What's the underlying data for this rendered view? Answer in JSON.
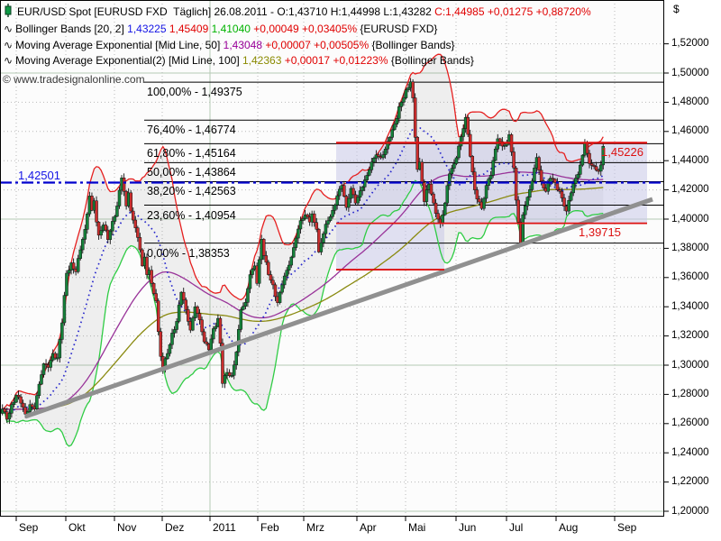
{
  "header": {
    "rows": [
      {
        "icon": "candle-icon",
        "segments": [
          {
            "t": "EUR/USD Spot [EURUSD FXD  Täglich] 26.08.2011 - O:1,43710 H:1,44998 L:1,43282 ",
            "c": "#000000"
          },
          {
            "t": "C:1,44985 +0,01275 +0,88720%",
            "c": "#e00000"
          }
        ]
      },
      {
        "icon": "wave-icon",
        "segments": [
          {
            "t": "Bollinger Bands [20, 2] ",
            "c": "#000000"
          },
          {
            "t": "1,43225 ",
            "c": "#1414e6"
          },
          {
            "t": "1,45409 ",
            "c": "#e00000"
          },
          {
            "t": "1,41040 ",
            "c": "#00b300"
          },
          {
            "t": "+0,00049 +0,03405% ",
            "c": "#e00000"
          },
          {
            "t": "{EURUSD FXD}",
            "c": "#000000"
          }
        ]
      },
      {
        "icon": "wave-icon",
        "segments": [
          {
            "t": "Moving Average Exponential [Mid Line, 50] ",
            "c": "#000000"
          },
          {
            "t": "1,43048 ",
            "c": "#990099"
          },
          {
            "t": "+0,00007 +0,00505% ",
            "c": "#e00000"
          },
          {
            "t": "{Bollinger Bands}",
            "c": "#000000"
          }
        ]
      },
      {
        "icon": "wave-icon",
        "segments": [
          {
            "t": "Moving Average Exponential(2) [Mid Line, 100] ",
            "c": "#000000"
          },
          {
            "t": "1,42363 ",
            "c": "#8a8a00"
          },
          {
            "t": "+0,00017 +0,01223% ",
            "c": "#e00000"
          },
          {
            "t": "{Bollinger Bands}",
            "c": "#000000"
          }
        ]
      }
    ]
  },
  "watermark": "© www.tradesignalonline.com",
  "axis": {
    "currency_symbol": "$",
    "y_labels": [
      "1,52000",
      "1,50000",
      "1,48000",
      "1,46000",
      "1,44000",
      "1,42000",
      "1,40000",
      "1,38000",
      "1,36000",
      "1,34000",
      "1,32000",
      "1,30000",
      "1,28000",
      "1,26000",
      "1,24000",
      "1,22000",
      "1,20000"
    ],
    "y_values": [
      1.52,
      1.5,
      1.48,
      1.46,
      1.44,
      1.42,
      1.4,
      1.38,
      1.36,
      1.34,
      1.32,
      1.3,
      1.28,
      1.26,
      1.24,
      1.22,
      1.2
    ],
    "x_labels": [
      "Sep",
      "Okt",
      "Nov",
      "Dez",
      "2011",
      "Feb",
      "Mrz",
      "Apr",
      "Mai",
      "Jun",
      "Jul",
      "Aug",
      "Sep"
    ]
  },
  "chart_data": {
    "type": "candlestick",
    "instrument": "EUR/USD Spot [EURUSD FXD]",
    "interval": "Täglich",
    "last_bar": {
      "date": "26.08.2011",
      "open": 1.4371,
      "high": 1.44998,
      "low": 1.43282,
      "close": 1.44985,
      "change": 0.01275,
      "change_pct": 0.8872
    },
    "y_range": [
      1.2,
      1.53
    ],
    "grid": {
      "horizontal_step": 0.02,
      "major_levels": [
        1.5,
        1.4,
        1.3,
        1.2
      ]
    },
    "close_anchors": [
      [
        -6,
        1.27
      ],
      [
        -4,
        1.263
      ],
      [
        -2,
        1.273
      ],
      [
        0,
        1.2795
      ],
      [
        2,
        1.274
      ],
      [
        4,
        1.2665
      ],
      [
        6,
        1.273
      ],
      [
        8,
        1.27
      ],
      [
        10,
        1.287
      ],
      [
        12,
        1.301
      ],
      [
        14,
        1.2985
      ],
      [
        16,
        1.308
      ],
      [
        18,
        1.305
      ],
      [
        20,
        1.329
      ],
      [
        22,
        1.363
      ],
      [
        24,
        1.37
      ],
      [
        26,
        1.364
      ],
      [
        28,
        1.379
      ],
      [
        30,
        1.393
      ],
      [
        32,
        1.4158
      ],
      [
        33,
        1.406
      ],
      [
        34,
        1.4125
      ],
      [
        35,
        1.398
      ],
      [
        36,
        1.389
      ],
      [
        38,
        1.396
      ],
      [
        40,
        1.386
      ],
      [
        42,
        1.3985
      ],
      [
        44,
        1.409
      ],
      [
        46,
        1.4282
      ],
      [
        47,
        1.419
      ],
      [
        48,
        1.409
      ],
      [
        49,
        1.418
      ],
      [
        50,
        1.4055
      ],
      [
        52,
        1.394
      ],
      [
        54,
        1.379
      ],
      [
        55,
        1.368
      ],
      [
        56,
        1.374
      ],
      [
        57,
        1.362
      ],
      [
        58,
        1.365
      ],
      [
        59,
        1.356
      ],
      [
        60,
        1.349
      ],
      [
        61,
        1.344
      ],
      [
        62,
        1.323
      ],
      [
        63,
        1.306
      ],
      [
        64,
        1.2969
      ],
      [
        66,
        1.308
      ],
      [
        68,
        1.322
      ],
      [
        70,
        1.33
      ],
      [
        72,
        1.3499
      ],
      [
        74,
        1.338
      ],
      [
        76,
        1.324
      ],
      [
        78,
        1.34
      ],
      [
        80,
        1.331
      ],
      [
        82,
        1.316
      ],
      [
        84,
        1.3105
      ],
      [
        86,
        1.325
      ],
      [
        88,
        1.332
      ],
      [
        89,
        1.315
      ],
      [
        90,
        1.2875
      ],
      [
        92,
        1.295
      ],
      [
        94,
        1.293
      ],
      [
        96,
        1.309
      ],
      [
        98,
        1.338
      ],
      [
        100,
        1.343
      ],
      [
        102,
        1.362
      ],
      [
        104,
        1.368
      ],
      [
        105,
        1.356
      ],
      [
        107,
        1.3862
      ],
      [
        108,
        1.375
      ],
      [
        110,
        1.362
      ],
      [
        112,
        1.355
      ],
      [
        114,
        1.3428
      ],
      [
        116,
        1.355
      ],
      [
        118,
        1.365
      ],
      [
        120,
        1.374
      ],
      [
        122,
        1.387
      ],
      [
        124,
        1.399
      ],
      [
        126,
        1.403
      ],
      [
        128,
        1.398
      ],
      [
        129,
        1.4036
      ],
      [
        131,
        1.393
      ],
      [
        132,
        1.3775
      ],
      [
        134,
        1.39
      ],
      [
        136,
        1.399
      ],
      [
        138,
        1.406
      ],
      [
        140,
        1.416
      ],
      [
        142,
        1.423
      ],
      [
        144,
        1.408
      ],
      [
        146,
        1.421
      ],
      [
        148,
        1.411
      ],
      [
        149,
        1.415
      ],
      [
        151,
        1.422
      ],
      [
        153,
        1.43
      ],
      [
        155,
        1.439
      ],
      [
        157,
        1.444
      ],
      [
        159,
        1.442
      ],
      [
        161,
        1.448
      ],
      [
        163,
        1.456
      ],
      [
        165,
        1.465
      ],
      [
        167,
        1.477
      ],
      [
        169,
        1.483
      ],
      [
        171,
        1.49
      ],
      [
        172,
        1.494
      ],
      [
        173,
        1.483
      ],
      [
        174,
        1.456
      ],
      [
        175,
        1.434
      ],
      [
        176,
        1.439
      ],
      [
        178,
        1.412
      ],
      [
        180,
        1.424
      ],
      [
        182,
        1.411
      ],
      [
        184,
        1.4
      ],
      [
        185,
        1.3968
      ],
      [
        187,
        1.411
      ],
      [
        189,
        1.431
      ],
      [
        191,
        1.438
      ],
      [
        193,
        1.45
      ],
      [
        195,
        1.462
      ],
      [
        196,
        1.4696
      ],
      [
        197,
        1.458
      ],
      [
        198,
        1.443
      ],
      [
        200,
        1.42
      ],
      [
        203,
        1.4073
      ],
      [
        205,
        1.423
      ],
      [
        207,
        1.43
      ],
      [
        209,
        1.448
      ],
      [
        210,
        1.455
      ],
      [
        212,
        1.45
      ],
      [
        214,
        1.452
      ],
      [
        215,
        1.4578
      ],
      [
        216,
        1.446
      ],
      [
        217,
        1.435
      ],
      [
        218,
        1.413
      ],
      [
        219,
        1.398
      ],
      [
        220,
        1.3837
      ],
      [
        221,
        1.403
      ],
      [
        223,
        1.415
      ],
      [
        225,
        1.426
      ],
      [
        227,
        1.4422
      ],
      [
        229,
        1.426
      ],
      [
        231,
        1.419
      ],
      [
        233,
        1.428
      ],
      [
        235,
        1.425
      ],
      [
        237,
        1.419
      ],
      [
        240,
        1.4055
      ],
      [
        242,
        1.418
      ],
      [
        244,
        1.428
      ],
      [
        246,
        1.437
      ],
      [
        248,
        1.4517
      ],
      [
        249,
        1.445
      ],
      [
        250,
        1.438
      ],
      [
        252,
        1.436
      ],
      [
        254,
        1.4328
      ],
      [
        255,
        1.4371
      ],
      [
        256,
        1.44985
      ]
    ],
    "indicators": {
      "bollinger": {
        "period": 20,
        "stdev": 2,
        "mid": 1.43225,
        "upper": 1.45409,
        "lower": 1.4104
      },
      "ema_mid_50": {
        "period": 50,
        "value": 1.43048
      },
      "ema_mid_100": {
        "period": 100,
        "value": 1.42363
      }
    },
    "fibonacci": [
      {
        "pct": "100,00%",
        "label": "100,00% - 1,49375",
        "value": 1.49375
      },
      {
        "pct": "76,40%",
        "label": "76,40% - 1,46774",
        "value": 1.46774
      },
      {
        "pct": "61,80%",
        "label": "61,80% - 1,45164",
        "value": 1.45164
      },
      {
        "pct": "50,00%",
        "label": "50,00% - 1,43864",
        "value": 1.43864
      },
      {
        "pct": "38,20%",
        "label": "38,20% - 1,42563",
        "value": 1.42563
      },
      {
        "pct": "23,60%",
        "label": "23,60% - 1,40954",
        "value": 1.40954
      },
      {
        "pct": "0,00%",
        "label": "0,00% - 1,38353",
        "value": 1.38353
      }
    ],
    "annotations": {
      "resistance_line": {
        "label": "1,45226",
        "value": 1.45226
      },
      "support_line": {
        "label": "1,39715",
        "value": 1.39715
      },
      "horizontal_level": {
        "label": "1,42501",
        "value": 1.42501
      },
      "zone": {
        "top": 1.45226,
        "bottom": 1.39715
      },
      "sub_zone": {
        "top": 1.39715,
        "bottom": 1.3654
      },
      "trend_line": {
        "start_price": 1.2648,
        "end_price": 1.4136
      }
    },
    "colors": {
      "up_candle": "#15823a",
      "down_candle": "#cc2e2e",
      "candle_outline": "#111111",
      "bb_upper": "#e62020",
      "bb_lower": "#2fcc44",
      "bb_fill_opacity": 0.1,
      "bb_mid_dots": "#2828cc",
      "ema50": "#993399",
      "ema100": "#8a8a10",
      "trend": "#909090",
      "annotation_red": "#dd1111",
      "level_blue": "#0000cd",
      "zone_fill": "#c9c9e8",
      "grid_dotted": "#b9b9b9",
      "grid_major": "#b5cab5"
    }
  }
}
